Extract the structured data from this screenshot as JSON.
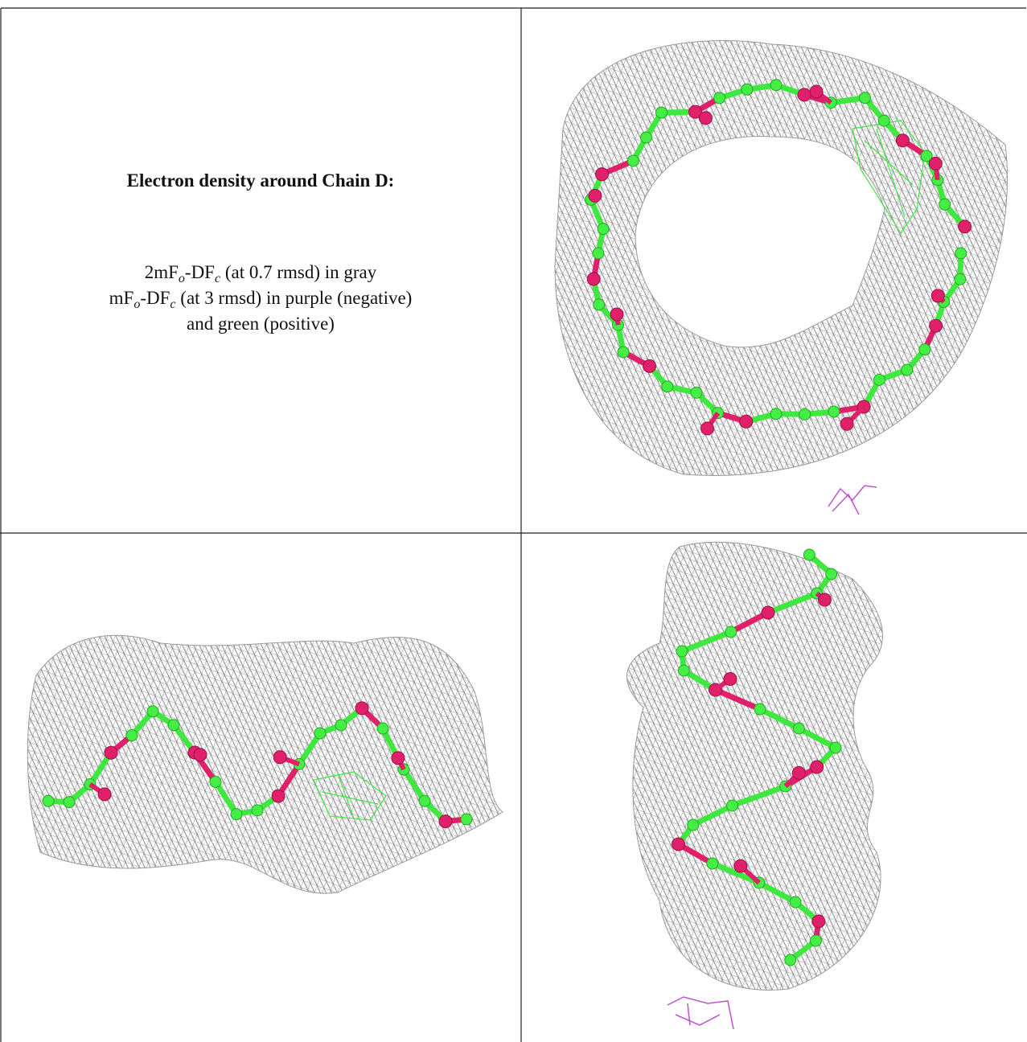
{
  "caption": {
    "title": "Electron density around Chain D:",
    "lines": [
      [
        "2mF",
        "o",
        "-DF",
        "c",
        " (at 0.7 rmsd) in gray"
      ],
      [
        "mF",
        "o",
        "-DF",
        "c",
        " (at 3 rmsd) in purple (negative)"
      ],
      [
        "and green (positive)"
      ]
    ]
  }
}
